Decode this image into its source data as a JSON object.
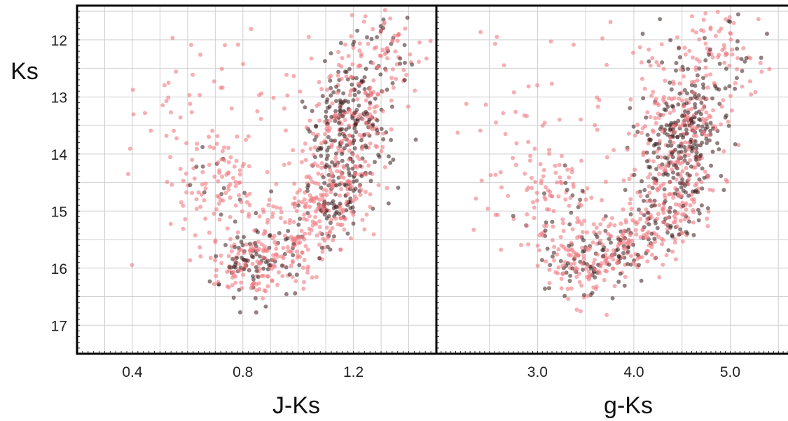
{
  "chart_data": [
    {
      "type": "scatter",
      "title": "",
      "xlabel": "J-Ks",
      "ylabel": "Ks",
      "xlim": [
        0.2,
        1.5
      ],
      "ylim": [
        17.5,
        11.4
      ],
      "y_inverted": true,
      "grid": true,
      "xticks": [
        0.4,
        0.8,
        1.2
      ],
      "xtick_labels": [
        "0.4",
        "0.8",
        "1.2"
      ],
      "yticks": [
        12,
        13,
        14,
        15,
        16,
        17
      ],
      "ytick_labels": [
        "12",
        "13",
        "14",
        "15",
        "16",
        "17"
      ],
      "x_gridlines": [
        0.3,
        0.4,
        0.5,
        0.6,
        0.7,
        0.8,
        0.9,
        1.0,
        1.1,
        1.2,
        1.3,
        1.4
      ],
      "point_color": "#f07a80",
      "dense_color": "#3a1a1a",
      "clusters": [
        {
          "cx": 1.2,
          "cy": 13.4,
          "sx": 0.07,
          "sy": 0.45,
          "n": 240,
          "dark": 0.55
        },
        {
          "cx": 1.15,
          "cy": 14.4,
          "sx": 0.07,
          "sy": 0.45,
          "n": 200,
          "dark": 0.45
        },
        {
          "cx": 1.1,
          "cy": 15.1,
          "sx": 0.06,
          "sy": 0.3,
          "n": 110,
          "dark": 0.35
        },
        {
          "cx": 1.3,
          "cy": 12.3,
          "sx": 0.08,
          "sy": 0.4,
          "n": 110,
          "dark": 0.25
        },
        {
          "cx": 0.83,
          "cy": 15.9,
          "sx": 0.08,
          "sy": 0.3,
          "n": 180,
          "dark": 0.4
        },
        {
          "cx": 0.95,
          "cy": 15.6,
          "sx": 0.07,
          "sy": 0.3,
          "n": 90,
          "dark": 0.2
        },
        {
          "cx": 0.72,
          "cy": 14.6,
          "sx": 0.07,
          "sy": 0.45,
          "n": 90,
          "dark": 0.2
        },
        {
          "cx": 0.6,
          "cy": 13.8,
          "sx": 0.12,
          "sy": 1.0,
          "n": 55,
          "dark": 0.0
        },
        {
          "cx": 1.0,
          "cy": 13.5,
          "sx": 0.1,
          "sy": 0.8,
          "n": 45,
          "dark": 0.0
        }
      ]
    },
    {
      "type": "scatter",
      "title": "",
      "xlabel": "g-Ks",
      "ylabel": "",
      "xlim": [
        1.95,
        5.6
      ],
      "ylim": [
        17.5,
        11.4
      ],
      "y_inverted": true,
      "grid": true,
      "xticks": [
        3.0,
        4.0,
        5.0
      ],
      "xtick_labels": [
        "3.0",
        "4.0",
        "5.0"
      ],
      "yticks": [
        12,
        13,
        14,
        15,
        16,
        17
      ],
      "x_gridlines": [
        2.5,
        3.0,
        3.5,
        4.0,
        4.5,
        5.0,
        5.5
      ],
      "point_color": "#f07a80",
      "dense_color": "#3a1a1a",
      "clusters": [
        {
          "cx": 4.55,
          "cy": 13.4,
          "sx": 0.22,
          "sy": 0.45,
          "n": 240,
          "dark": 0.55
        },
        {
          "cx": 4.45,
          "cy": 14.4,
          "sx": 0.22,
          "sy": 0.45,
          "n": 200,
          "dark": 0.45
        },
        {
          "cx": 4.3,
          "cy": 15.1,
          "sx": 0.2,
          "sy": 0.3,
          "n": 110,
          "dark": 0.35
        },
        {
          "cx": 4.85,
          "cy": 12.3,
          "sx": 0.25,
          "sy": 0.4,
          "n": 110,
          "dark": 0.25
        },
        {
          "cx": 3.55,
          "cy": 15.9,
          "sx": 0.25,
          "sy": 0.3,
          "n": 180,
          "dark": 0.4
        },
        {
          "cx": 3.9,
          "cy": 15.6,
          "sx": 0.22,
          "sy": 0.3,
          "n": 90,
          "dark": 0.2
        },
        {
          "cx": 3.2,
          "cy": 14.8,
          "sx": 0.2,
          "sy": 0.45,
          "n": 90,
          "dark": 0.2
        },
        {
          "cx": 2.9,
          "cy": 13.8,
          "sx": 0.35,
          "sy": 1.0,
          "n": 55,
          "dark": 0.0
        },
        {
          "cx": 4.1,
          "cy": 13.5,
          "sx": 0.3,
          "sy": 0.8,
          "n": 45,
          "dark": 0.0
        }
      ]
    }
  ]
}
